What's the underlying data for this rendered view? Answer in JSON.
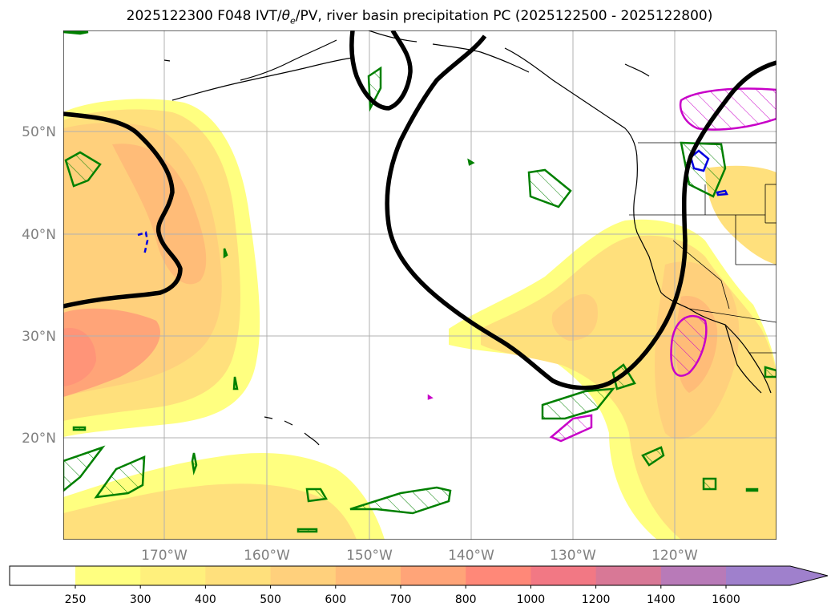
{
  "title_main": "2025122300 F048 IVT/",
  "title_theta": "θ",
  "title_sub": "e",
  "title_rest": "/PV, river basin precipitation PC (2025122500 - 2025122800)",
  "lat_labels": [
    "50°N",
    "40°N",
    "30°N",
    "20°N"
  ],
  "lon_labels": [
    "170°W",
    "160°W",
    "150°W",
    "140°W",
    "130°W",
    "120°W"
  ],
  "colorbar": {
    "levels": [
      "250",
      "300",
      "400",
      "500",
      "600",
      "700",
      "800",
      "1000",
      "1200",
      "1400",
      "1600"
    ],
    "colors": [
      "#ffff80",
      "#fff07c",
      "#ffe07c",
      "#ffd07c",
      "#ffbc78",
      "#ffa478",
      "#ff8878",
      "#f27884",
      "#d87896",
      "#b87ab8",
      "#9f80cc"
    ]
  },
  "contour_colors": {
    "ivt_fill": "#ffeb6e",
    "pv_line": "#000000",
    "green": "#008000",
    "blue": "#0000e0",
    "magenta": "#c800c8"
  }
}
